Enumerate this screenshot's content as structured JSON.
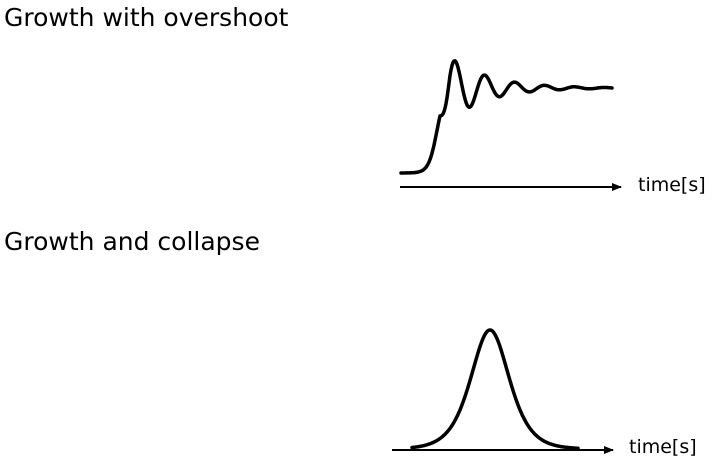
{
  "panels": [
    {
      "title": "Growth with overshoot",
      "curve": "damped-oscillation",
      "xlabel": "time[s]"
    },
    {
      "title": "Growth and collapse",
      "curve": "bell",
      "xlabel": "time[s]"
    }
  ],
  "colors": {
    "ink": "#000000",
    "background": "#ffffff"
  }
}
